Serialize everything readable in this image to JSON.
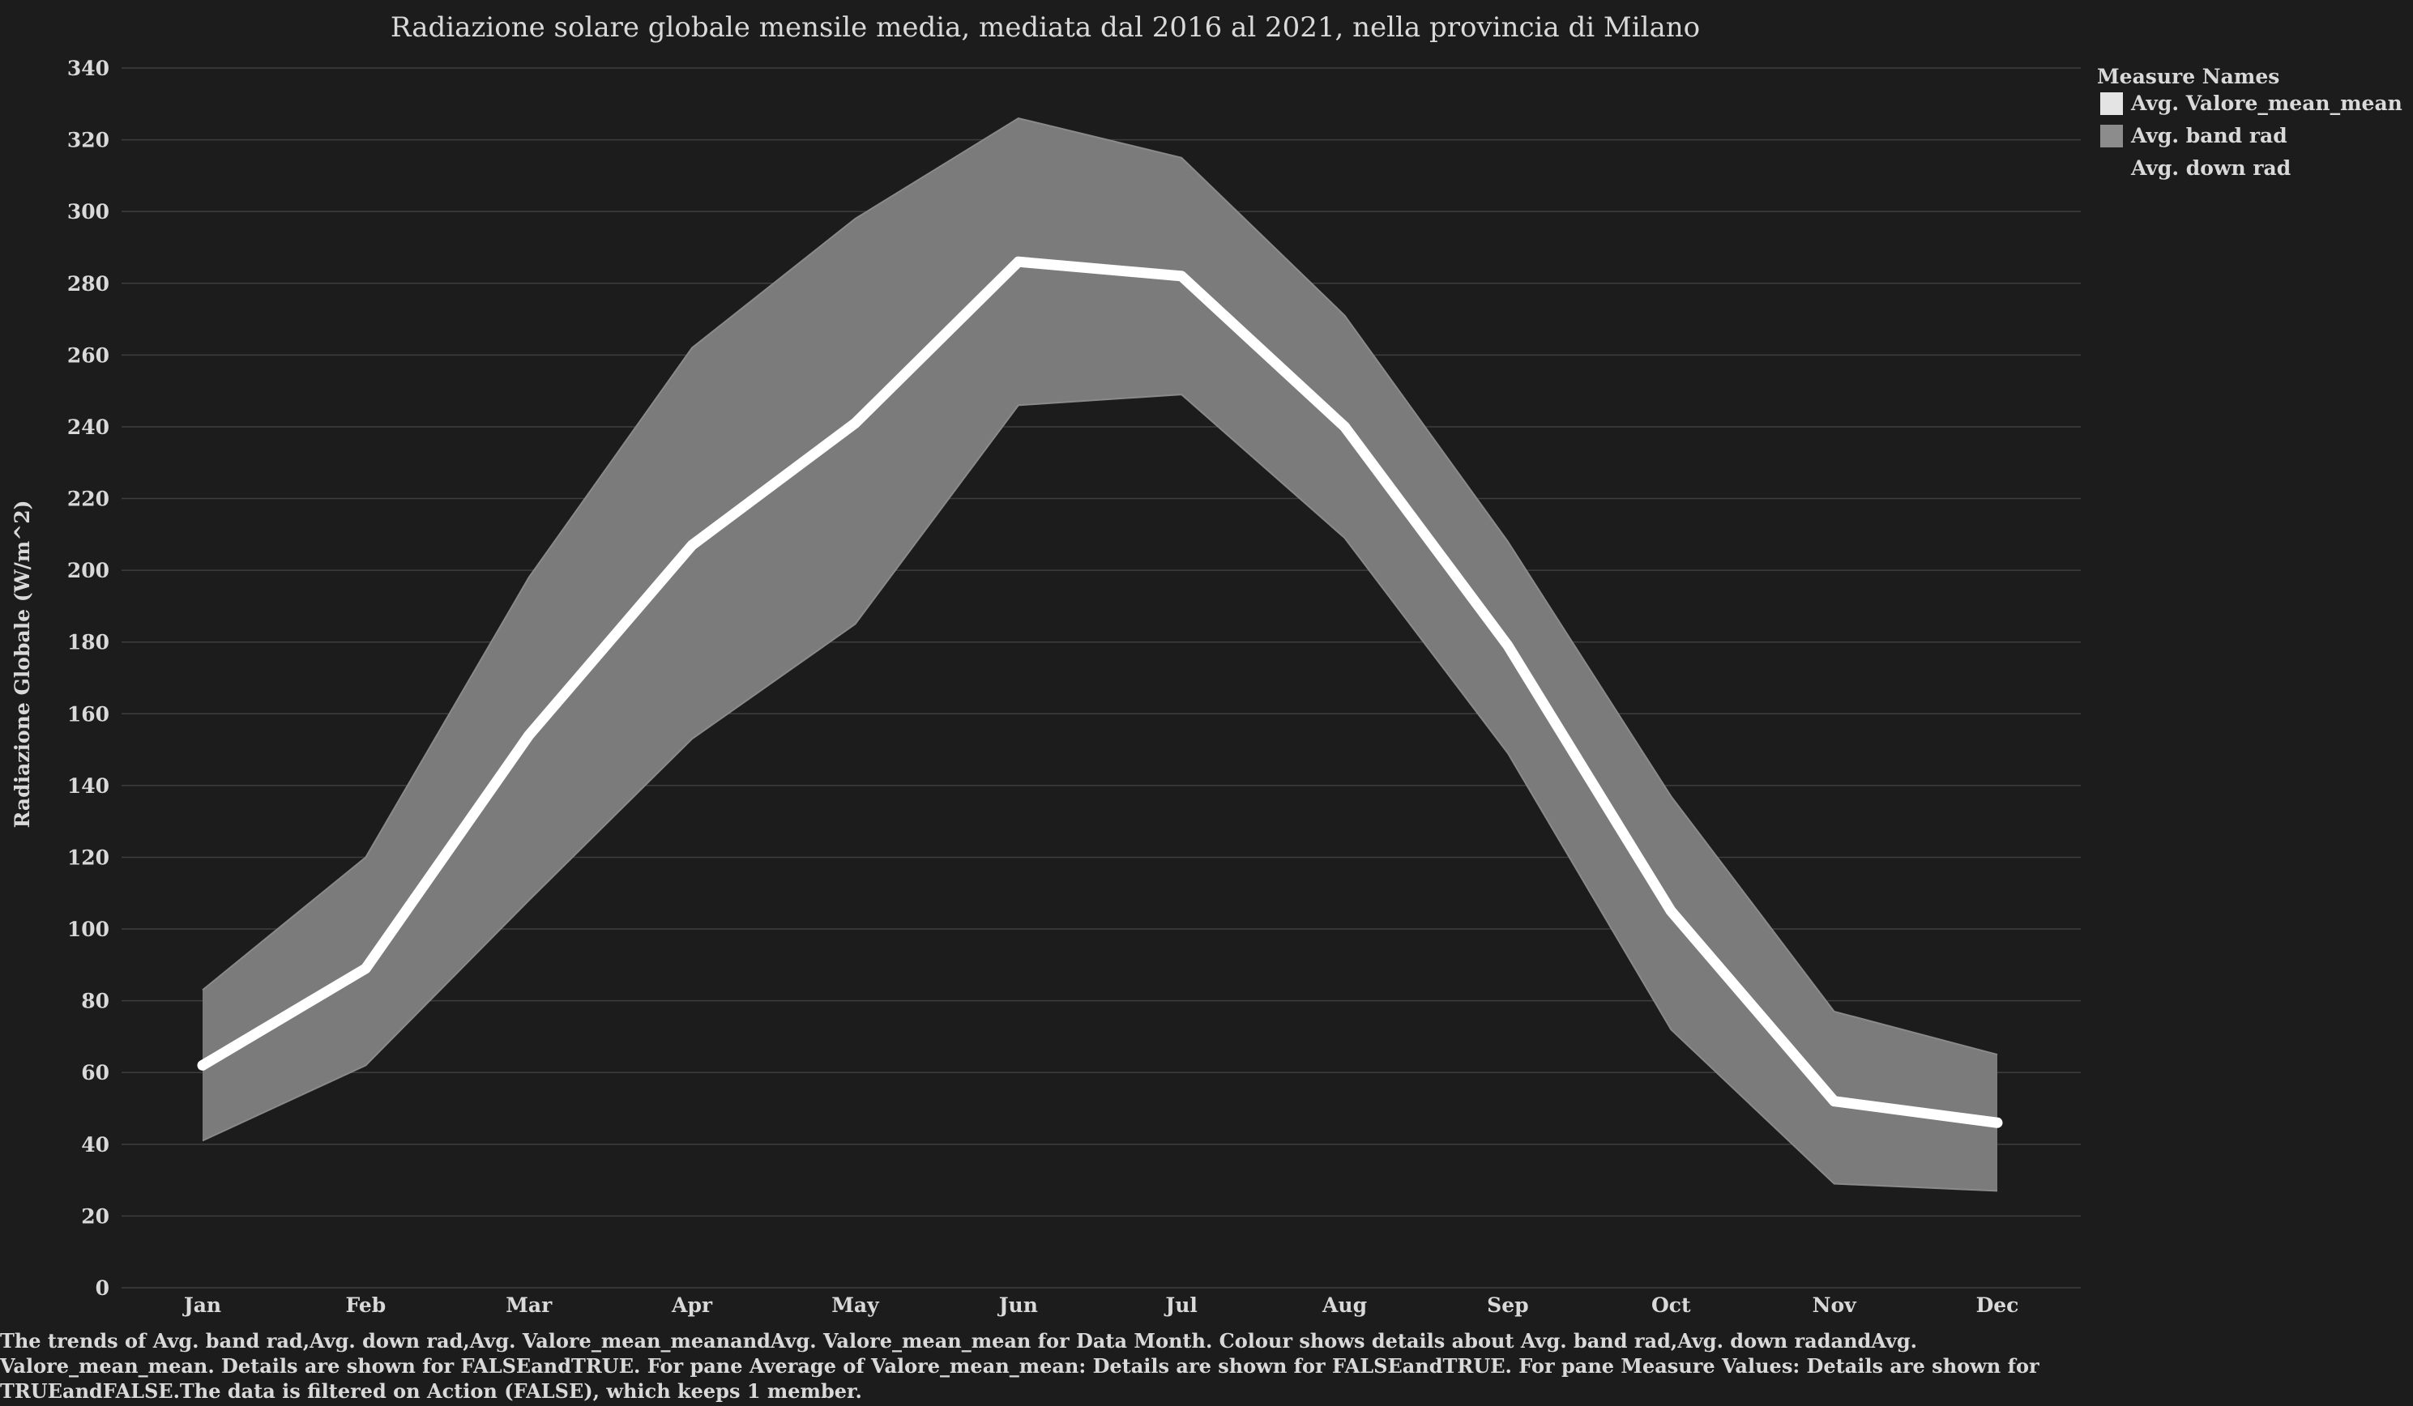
{
  "chart_data": {
    "type": "area",
    "title": "Radiazione solare globale mensile media, mediata dal 2016 al 2021, nella provincia di Milano",
    "xlabel": "",
    "ylabel": "Radiazione Globale (W/m^2)",
    "categories": [
      "Jan",
      "Feb",
      "Mar",
      "Apr",
      "May",
      "Jun",
      "Jul",
      "Aug",
      "Sep",
      "Oct",
      "Nov",
      "Dec"
    ],
    "ylim": [
      0,
      340
    ],
    "yticks": [
      0,
      20,
      40,
      60,
      80,
      100,
      120,
      140,
      160,
      180,
      200,
      220,
      240,
      260,
      280,
      300,
      320,
      340
    ],
    "grid": true,
    "legend_position": "right",
    "legend_title": "Measure Names",
    "series": [
      {
        "name": "Avg. Valore_mean_mean",
        "type": "line",
        "color": "#ffffff",
        "values": [
          62,
          89,
          154,
          207,
          241,
          286,
          282,
          240,
          179,
          105,
          52,
          46
        ]
      },
      {
        "name": "Avg. band rad",
        "type": "band-upper",
        "color": "#7b7b7b",
        "values": [
          83,
          120,
          198,
          262,
          298,
          326,
          315,
          271,
          208,
          137,
          77,
          65
        ]
      },
      {
        "name": "Avg. down rad",
        "type": "band-lower",
        "color": "#1c1c1c",
        "values": [
          41,
          62,
          108,
          153,
          185,
          246,
          249,
          209,
          149,
          72,
          29,
          27
        ]
      }
    ]
  },
  "caption": "The trends of Avg. band rad,Avg. down rad,Avg. Valore_mean_meanandAvg. Valore_mean_mean for Data Month. Colour shows details about Avg. band rad,Avg. down radandAvg. Valore_mean_mean. Details are shown for FALSEandTRUE. For pane Average of Valore_mean_mean: Details are shown for FALSEandTRUE. For pane Measure Values: Details are shown for TRUEandFALSE.The data is filtered on Action (FALSE), which keeps 1 member."
}
